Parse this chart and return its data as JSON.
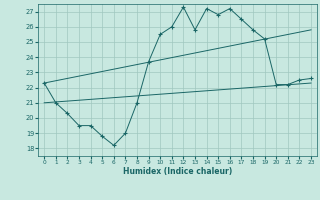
{
  "xlabel": "Humidex (Indice chaleur)",
  "ylabel": "",
  "xlim": [
    -0.5,
    23.5
  ],
  "ylim": [
    17.5,
    27.5
  ],
  "yticks": [
    18,
    19,
    20,
    21,
    22,
    23,
    24,
    25,
    26,
    27
  ],
  "xticks": [
    0,
    1,
    2,
    3,
    4,
    5,
    6,
    7,
    8,
    9,
    10,
    11,
    12,
    13,
    14,
    15,
    16,
    17,
    18,
    19,
    20,
    21,
    22,
    23
  ],
  "bg_color": "#c8e8e0",
  "grid_color": "#a0c8c0",
  "line_color": "#1a6666",
  "main_line_x": [
    0,
    1,
    2,
    3,
    4,
    5,
    6,
    7,
    8,
    9,
    10,
    11,
    12,
    13,
    14,
    15,
    16,
    17,
    18,
    19,
    20,
    21,
    22,
    23
  ],
  "main_line_y": [
    22.3,
    21.0,
    20.3,
    19.5,
    19.5,
    18.8,
    18.2,
    19.0,
    21.0,
    23.7,
    25.5,
    26.0,
    27.3,
    25.8,
    27.2,
    26.8,
    27.2,
    26.5,
    25.8,
    25.2,
    22.2,
    22.2,
    22.5,
    22.6
  ],
  "trend1_x": [
    0,
    23
  ],
  "trend1_y": [
    22.3,
    25.8
  ],
  "trend2_x": [
    0,
    23
  ],
  "trend2_y": [
    21.0,
    22.3
  ]
}
